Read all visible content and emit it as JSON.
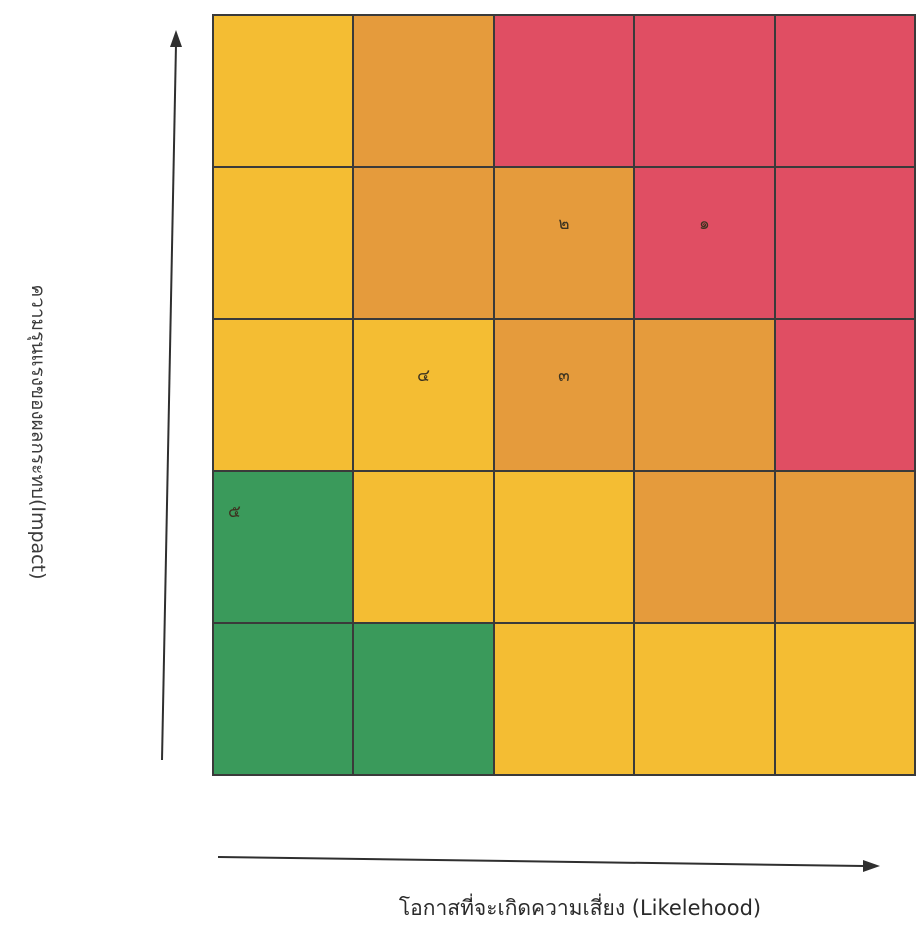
{
  "matrix": {
    "rows": [
      [
        {
          "color": "#f4bd33",
          "label": ""
        },
        {
          "color": "#e59b3c",
          "label": ""
        },
        {
          "color": "#e04e63",
          "label": ""
        },
        {
          "color": "#e04e63",
          "label": ""
        },
        {
          "color": "#e04e63",
          "label": ""
        }
      ],
      [
        {
          "color": "#f4bd33",
          "label": ""
        },
        {
          "color": "#e59b3c",
          "label": ""
        },
        {
          "color": "#e59b3c",
          "label": "๒"
        },
        {
          "color": "#e04e63",
          "label": "๑"
        },
        {
          "color": "#e04e63",
          "label": ""
        }
      ],
      [
        {
          "color": "#f4bd33",
          "label": ""
        },
        {
          "color": "#f4bd33",
          "label": "๔"
        },
        {
          "color": "#e59b3c",
          "label": "๓"
        },
        {
          "color": "#e59b3c",
          "label": ""
        },
        {
          "color": "#e04e63",
          "label": ""
        }
      ],
      [
        {
          "color": "#3a9a5b",
          "label": "๕"
        },
        {
          "color": "#f4bd33",
          "label": ""
        },
        {
          "color": "#f4bd33",
          "label": ""
        },
        {
          "color": "#e59b3c",
          "label": ""
        },
        {
          "color": "#e59b3c",
          "label": ""
        }
      ],
      [
        {
          "color": "#3a9a5b",
          "label": ""
        },
        {
          "color": "#3a9a5b",
          "label": ""
        },
        {
          "color": "#f4bd33",
          "label": ""
        },
        {
          "color": "#f4bd33",
          "label": ""
        },
        {
          "color": "#f4bd33",
          "label": ""
        }
      ]
    ]
  },
  "axes": {
    "y_title": "ความรุนแรงของผลกระทบ(Impact)",
    "x_title": "โอกาสที่จะเกิดความเสี่ยง  (Likelehood)"
  },
  "colors": {
    "arrow": "#2f2f2f",
    "grid_line": "#3a3a3a"
  }
}
